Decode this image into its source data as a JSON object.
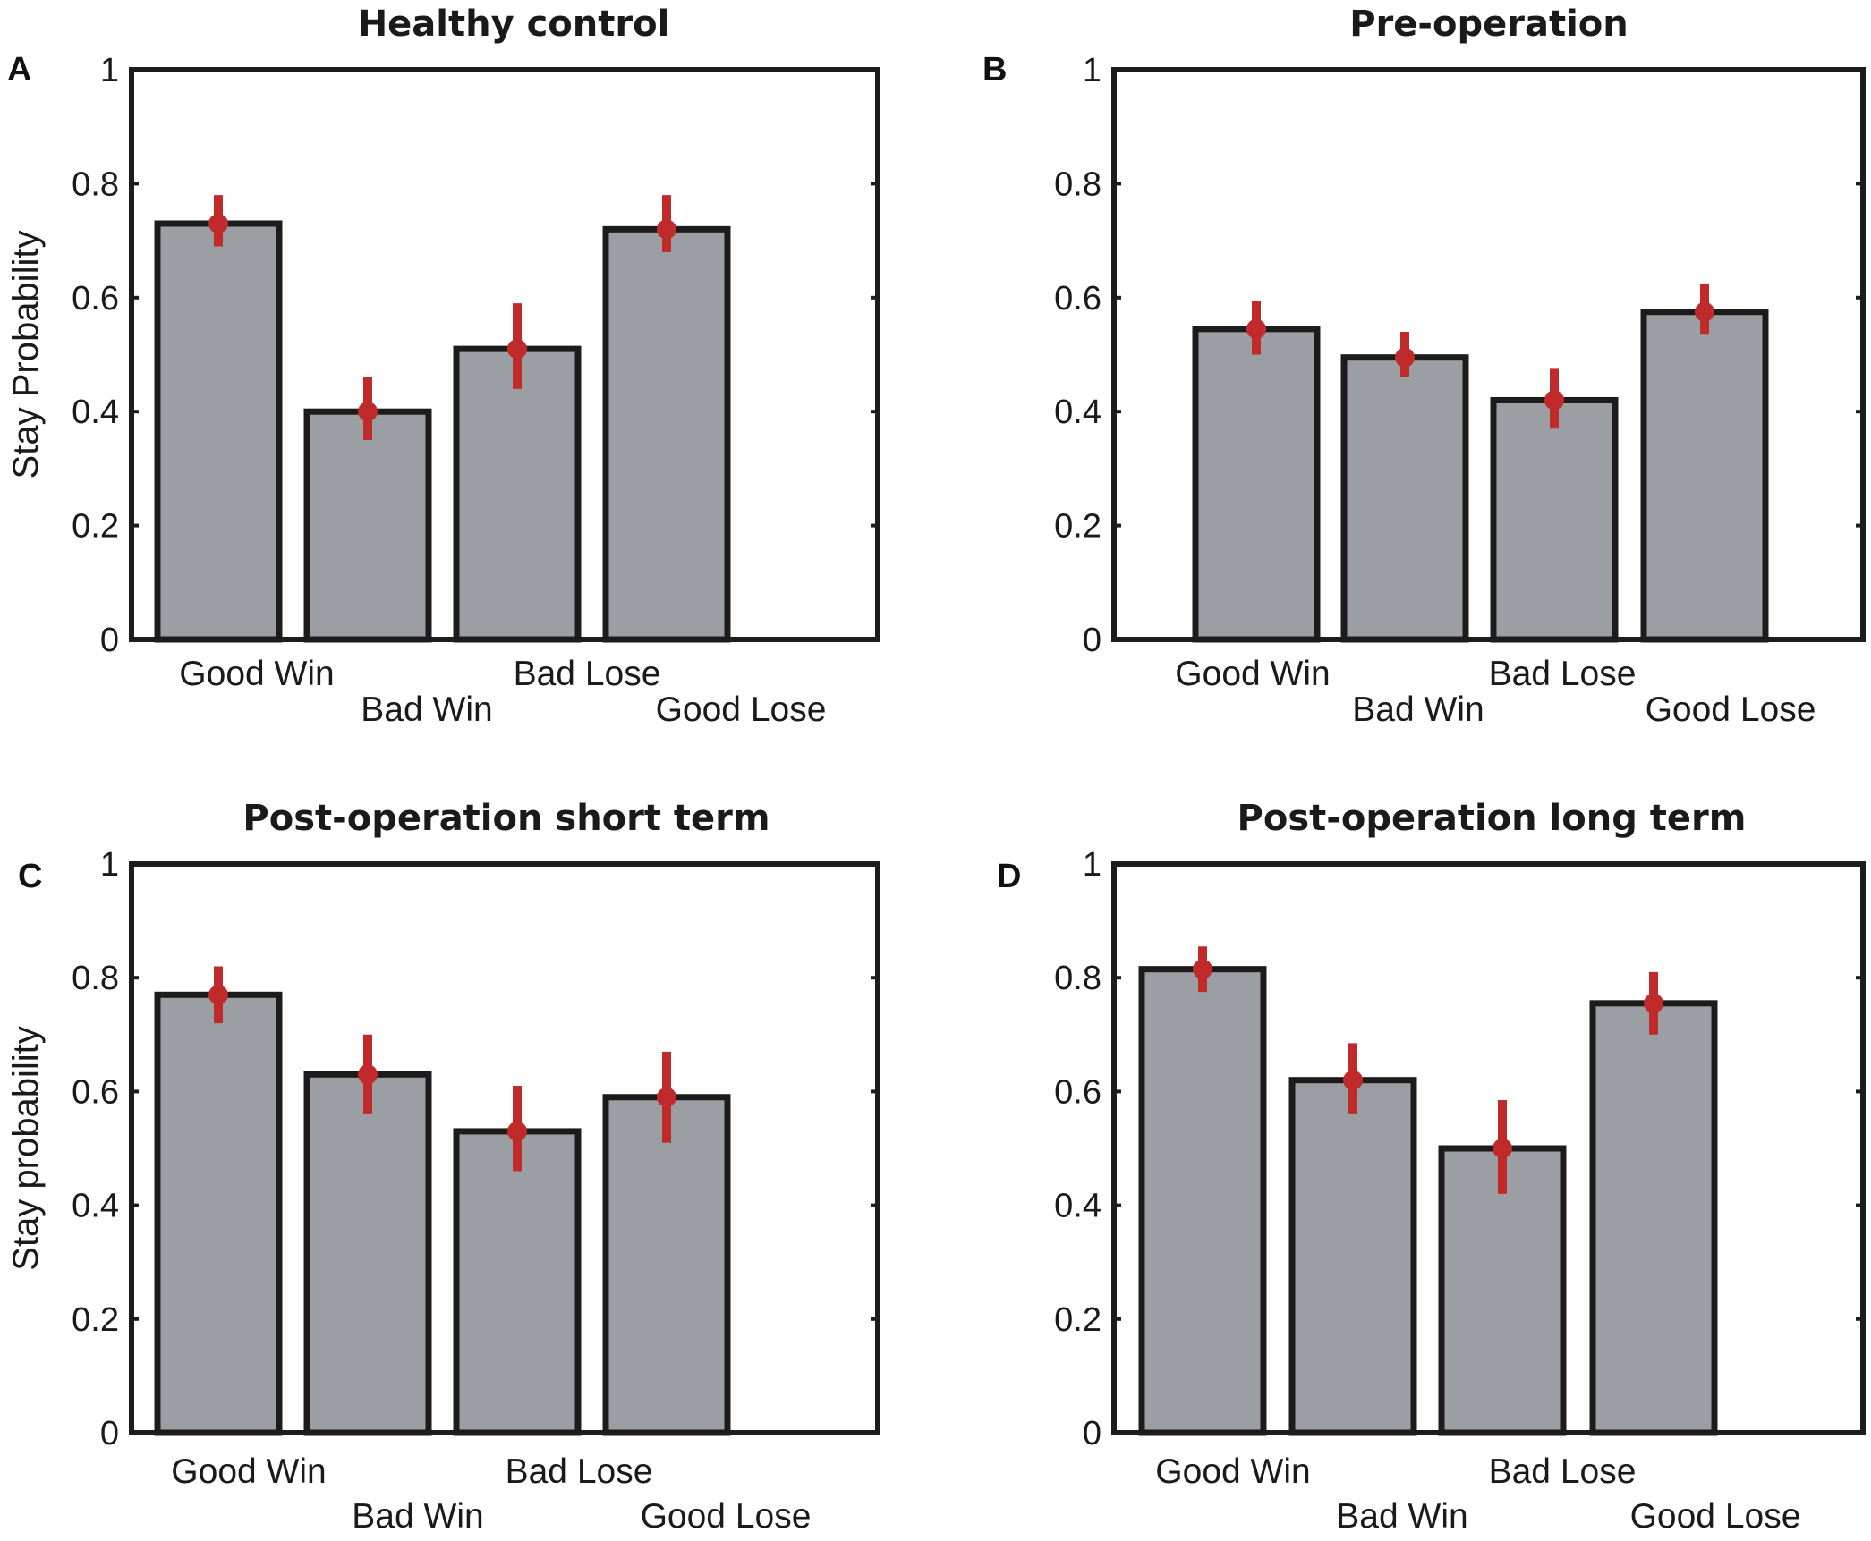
{
  "colors": {
    "bar": "#9b9ea3",
    "edge": "#1c1c1c",
    "error": "#c02a2a"
  },
  "chart_data": [
    {
      "panel": "A",
      "type": "bar",
      "title": "Healthy control",
      "ylabel": "Stay Probability",
      "categories": [
        "Good Win",
        "Bad Win",
        "Bad Lose",
        "Good Lose"
      ],
      "values": [
        0.73,
        0.4,
        0.51,
        0.72
      ],
      "error_low": [
        0.69,
        0.35,
        0.44,
        0.68
      ],
      "error_high": [
        0.78,
        0.46,
        0.59,
        0.78
      ],
      "ylim": [
        0,
        1
      ],
      "yticks": [
        "0",
        "0.2",
        "0.4",
        "0.6",
        "0.8",
        "1"
      ]
    },
    {
      "panel": "B",
      "type": "bar",
      "title": "Pre-operation",
      "ylabel": "",
      "categories": [
        "Good Win",
        "Bad Win",
        "Bad Lose",
        "Good Lose"
      ],
      "values": [
        0.545,
        0.495,
        0.42,
        0.575
      ],
      "error_low": [
        0.5,
        0.46,
        0.37,
        0.535
      ],
      "error_high": [
        0.595,
        0.54,
        0.475,
        0.625
      ],
      "ylim": [
        0,
        1
      ],
      "yticks": [
        "0",
        "0.2",
        "0.4",
        "0.6",
        "0.8",
        "1"
      ]
    },
    {
      "panel": "C",
      "type": "bar",
      "title": "Post-operation short term",
      "ylabel": "Stay probability",
      "categories": [
        "Good Win",
        "Bad Win",
        "Bad Lose",
        "Good Lose"
      ],
      "values": [
        0.77,
        0.63,
        0.53,
        0.59
      ],
      "error_low": [
        0.72,
        0.56,
        0.46,
        0.51
      ],
      "error_high": [
        0.82,
        0.7,
        0.61,
        0.67
      ],
      "ylim": [
        0,
        1
      ],
      "yticks": [
        "0",
        "0.2",
        "0.4",
        "0.6",
        "0.8",
        "1"
      ]
    },
    {
      "panel": "D",
      "type": "bar",
      "title": "Post-operation long term",
      "ylabel": "",
      "categories": [
        "Good Win",
        "Bad Win",
        "Bad Lose",
        "Good Lose"
      ],
      "values": [
        0.815,
        0.62,
        0.5,
        0.755
      ],
      "error_low": [
        0.775,
        0.56,
        0.42,
        0.7
      ],
      "error_high": [
        0.855,
        0.685,
        0.585,
        0.81
      ],
      "ylim": [
        0,
        1
      ],
      "yticks": [
        "0",
        "0.2",
        "0.4",
        "0.6",
        "0.8",
        "1"
      ]
    }
  ]
}
